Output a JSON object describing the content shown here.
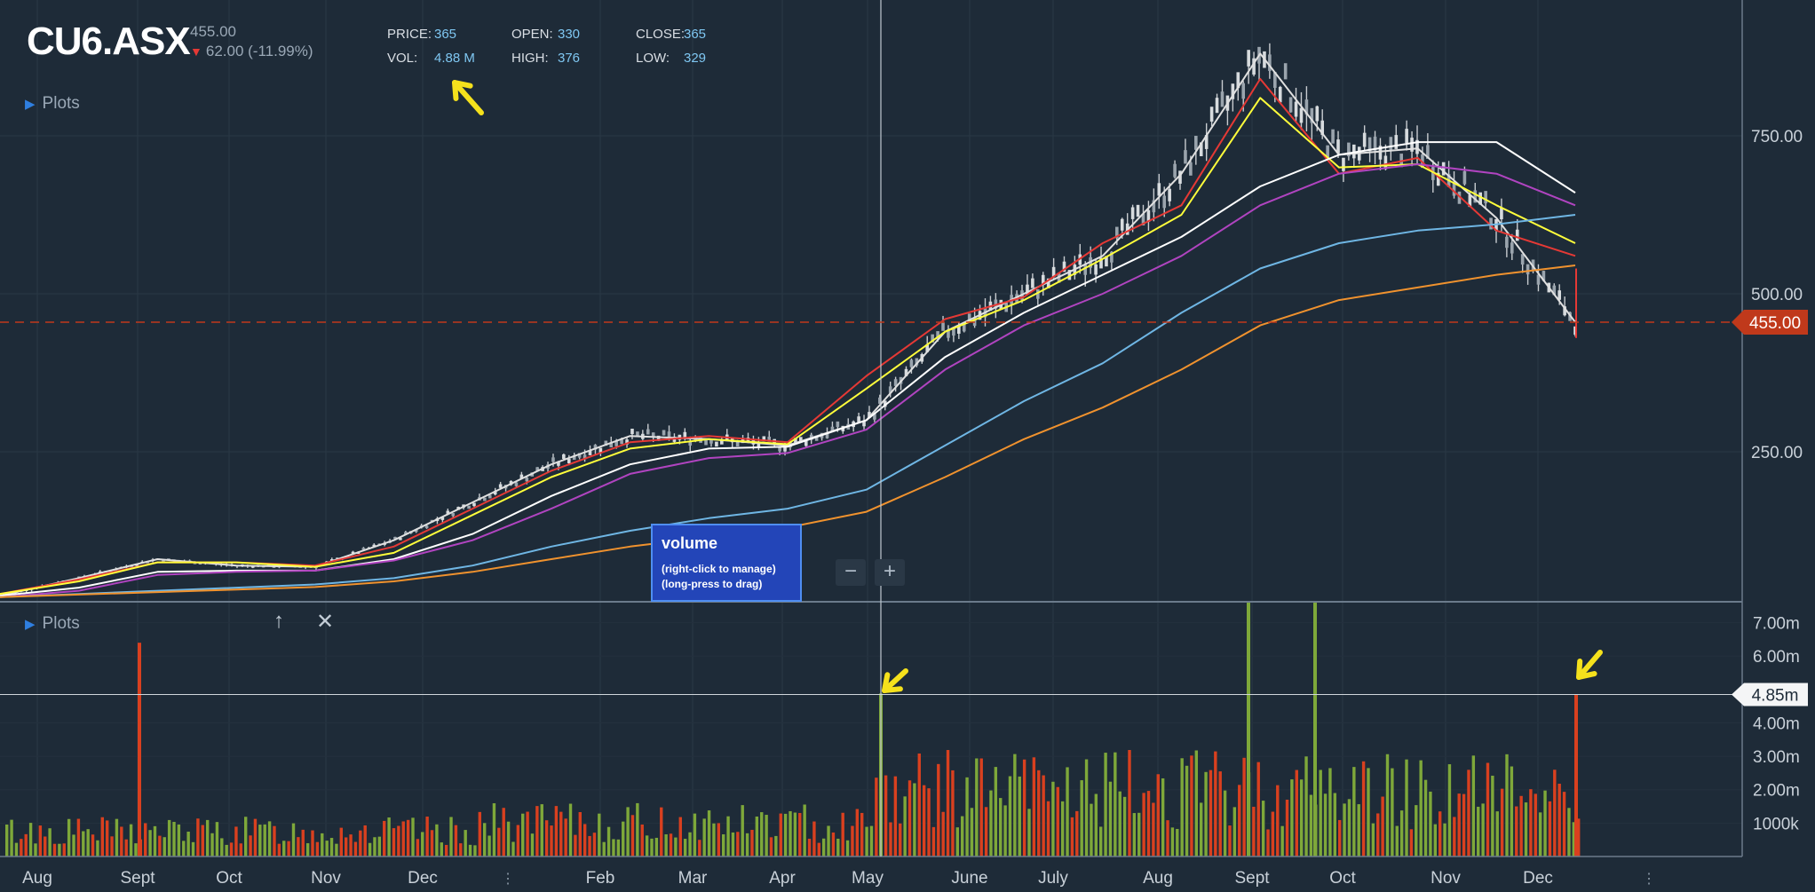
{
  "ticker": {
    "symbol": "CU6.ASX",
    "price": "455.00",
    "change": "62.00 (-11.99%)"
  },
  "stats": {
    "price_label": "PRICE:",
    "price": "365",
    "vol_label": "VOL:",
    "vol": "4.88 M",
    "open_label": "OPEN:",
    "open": "330",
    "high_label": "HIGH:",
    "high": "376",
    "close_label": "CLOSE:",
    "close": "365",
    "low_label": "LOW:",
    "low": "329"
  },
  "plots_label": "Plots",
  "volume_tooltip": {
    "title": "volume",
    "line1": "(right-click to manage)",
    "line2": "(long-press to drag)"
  },
  "zoom": {
    "minus": "−",
    "plus": "+"
  },
  "colors": {
    "background": "#1e2b38",
    "up": "#7ea83a",
    "down": "#d9401f",
    "price_marker": "#c0391b"
  },
  "chart_data": [
    {
      "type": "line",
      "title": "",
      "x_labels": [
        "Aug",
        "Sept",
        "Oct",
        "Nov",
        "Dec",
        "Feb",
        "Mar",
        "Apr",
        "May",
        "June",
        "July",
        "Aug",
        "Sept",
        "Oct",
        "Nov",
        "Dec"
      ],
      "y_ticks": [
        "250.00",
        "500.00",
        "750.00"
      ],
      "ylim": [
        0,
        900
      ],
      "last_price_label": "455.00",
      "last_price": 455,
      "series": [
        {
          "color": "#e0e0e0",
          "values": [
            22,
            50,
            80,
            70,
            68,
            110,
            170,
            230,
            275,
            270,
            260,
            300,
            440,
            500,
            560,
            690,
            880,
            720,
            730,
            620,
            455
          ]
        },
        {
          "color": "#e53935",
          "values": [
            25,
            48,
            75,
            75,
            70,
            100,
            160,
            220,
            265,
            275,
            265,
            370,
            460,
            495,
            580,
            640,
            840,
            690,
            715,
            600,
            560
          ]
        },
        {
          "color": "#ffff3b",
          "values": [
            25,
            45,
            75,
            75,
            68,
            90,
            150,
            210,
            255,
            270,
            262,
            350,
            440,
            490,
            555,
            625,
            810,
            700,
            705,
            640,
            580
          ]
        },
        {
          "color": "#ffffff",
          "values": [
            22,
            35,
            60,
            62,
            62,
            80,
            120,
            180,
            230,
            255,
            258,
            300,
            400,
            470,
            530,
            590,
            670,
            720,
            740,
            740,
            660
          ]
        },
        {
          "color": "#b044c0",
          "values": [
            20,
            30,
            55,
            60,
            62,
            78,
            110,
            160,
            215,
            240,
            248,
            285,
            380,
            450,
            500,
            560,
            640,
            690,
            705,
            690,
            640
          ]
        },
        {
          "color": "#6fb6e4",
          "values": [
            20,
            25,
            30,
            35,
            40,
            50,
            70,
            100,
            125,
            145,
            160,
            190,
            260,
            330,
            390,
            470,
            540,
            580,
            600,
            610,
            625
          ]
        },
        {
          "color": "#f0922e",
          "values": [
            20,
            24,
            28,
            32,
            36,
            45,
            60,
            80,
            100,
            115,
            130,
            155,
            210,
            270,
            320,
            380,
            450,
            490,
            510,
            530,
            545
          ]
        }
      ]
    },
    {
      "type": "bar",
      "title": "",
      "ylim": [
        0,
        7.6
      ],
      "y_ticks": [
        "1000k",
        "2.00m",
        "3.00m",
        "4.00m",
        "6.00m",
        "7.00m"
      ],
      "marker_label": "4.85m",
      "marker_value": 4.85,
      "peaks": [
        {
          "label": "Sept",
          "value": 6.4,
          "up": false
        },
        {
          "label": "May",
          "value": 4.88,
          "up": true
        },
        {
          "label": "Sept",
          "value": 7.6,
          "up": true
        },
        {
          "label": "Sept",
          "value": 7.6,
          "up": true
        },
        {
          "label": "Dec",
          "value": 4.85,
          "up": false
        }
      ]
    }
  ]
}
